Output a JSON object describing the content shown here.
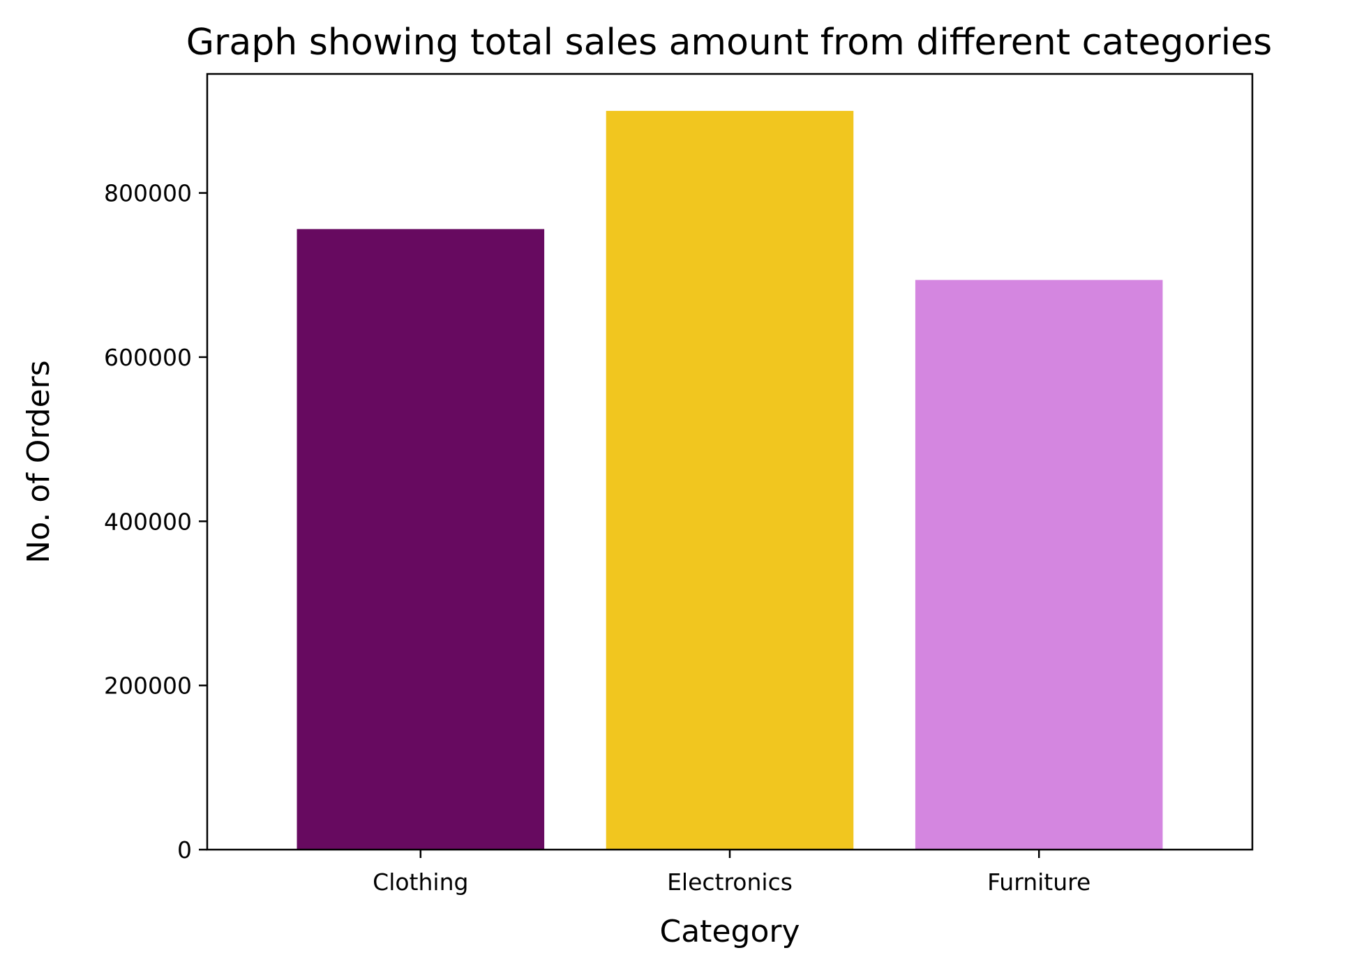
{
  "chart_data": {
    "type": "bar",
    "title": "Graph showing total sales amount from different categories",
    "xlabel": "Category",
    "ylabel": "No. of Orders",
    "categories": [
      "Clothing",
      "Electronics",
      "Furniture"
    ],
    "values": [
      756000,
      900000,
      694000
    ],
    "colors": [
      "#670a60",
      "#f1c61f",
      "#d486e0"
    ],
    "ylim": [
      0,
      945000
    ],
    "yticks": [
      0,
      200000,
      400000,
      600000,
      800000
    ],
    "ytick_labels": [
      "0",
      "200000",
      "400000",
      "600000",
      "800000"
    ],
    "grid": false,
    "legend": false
  }
}
